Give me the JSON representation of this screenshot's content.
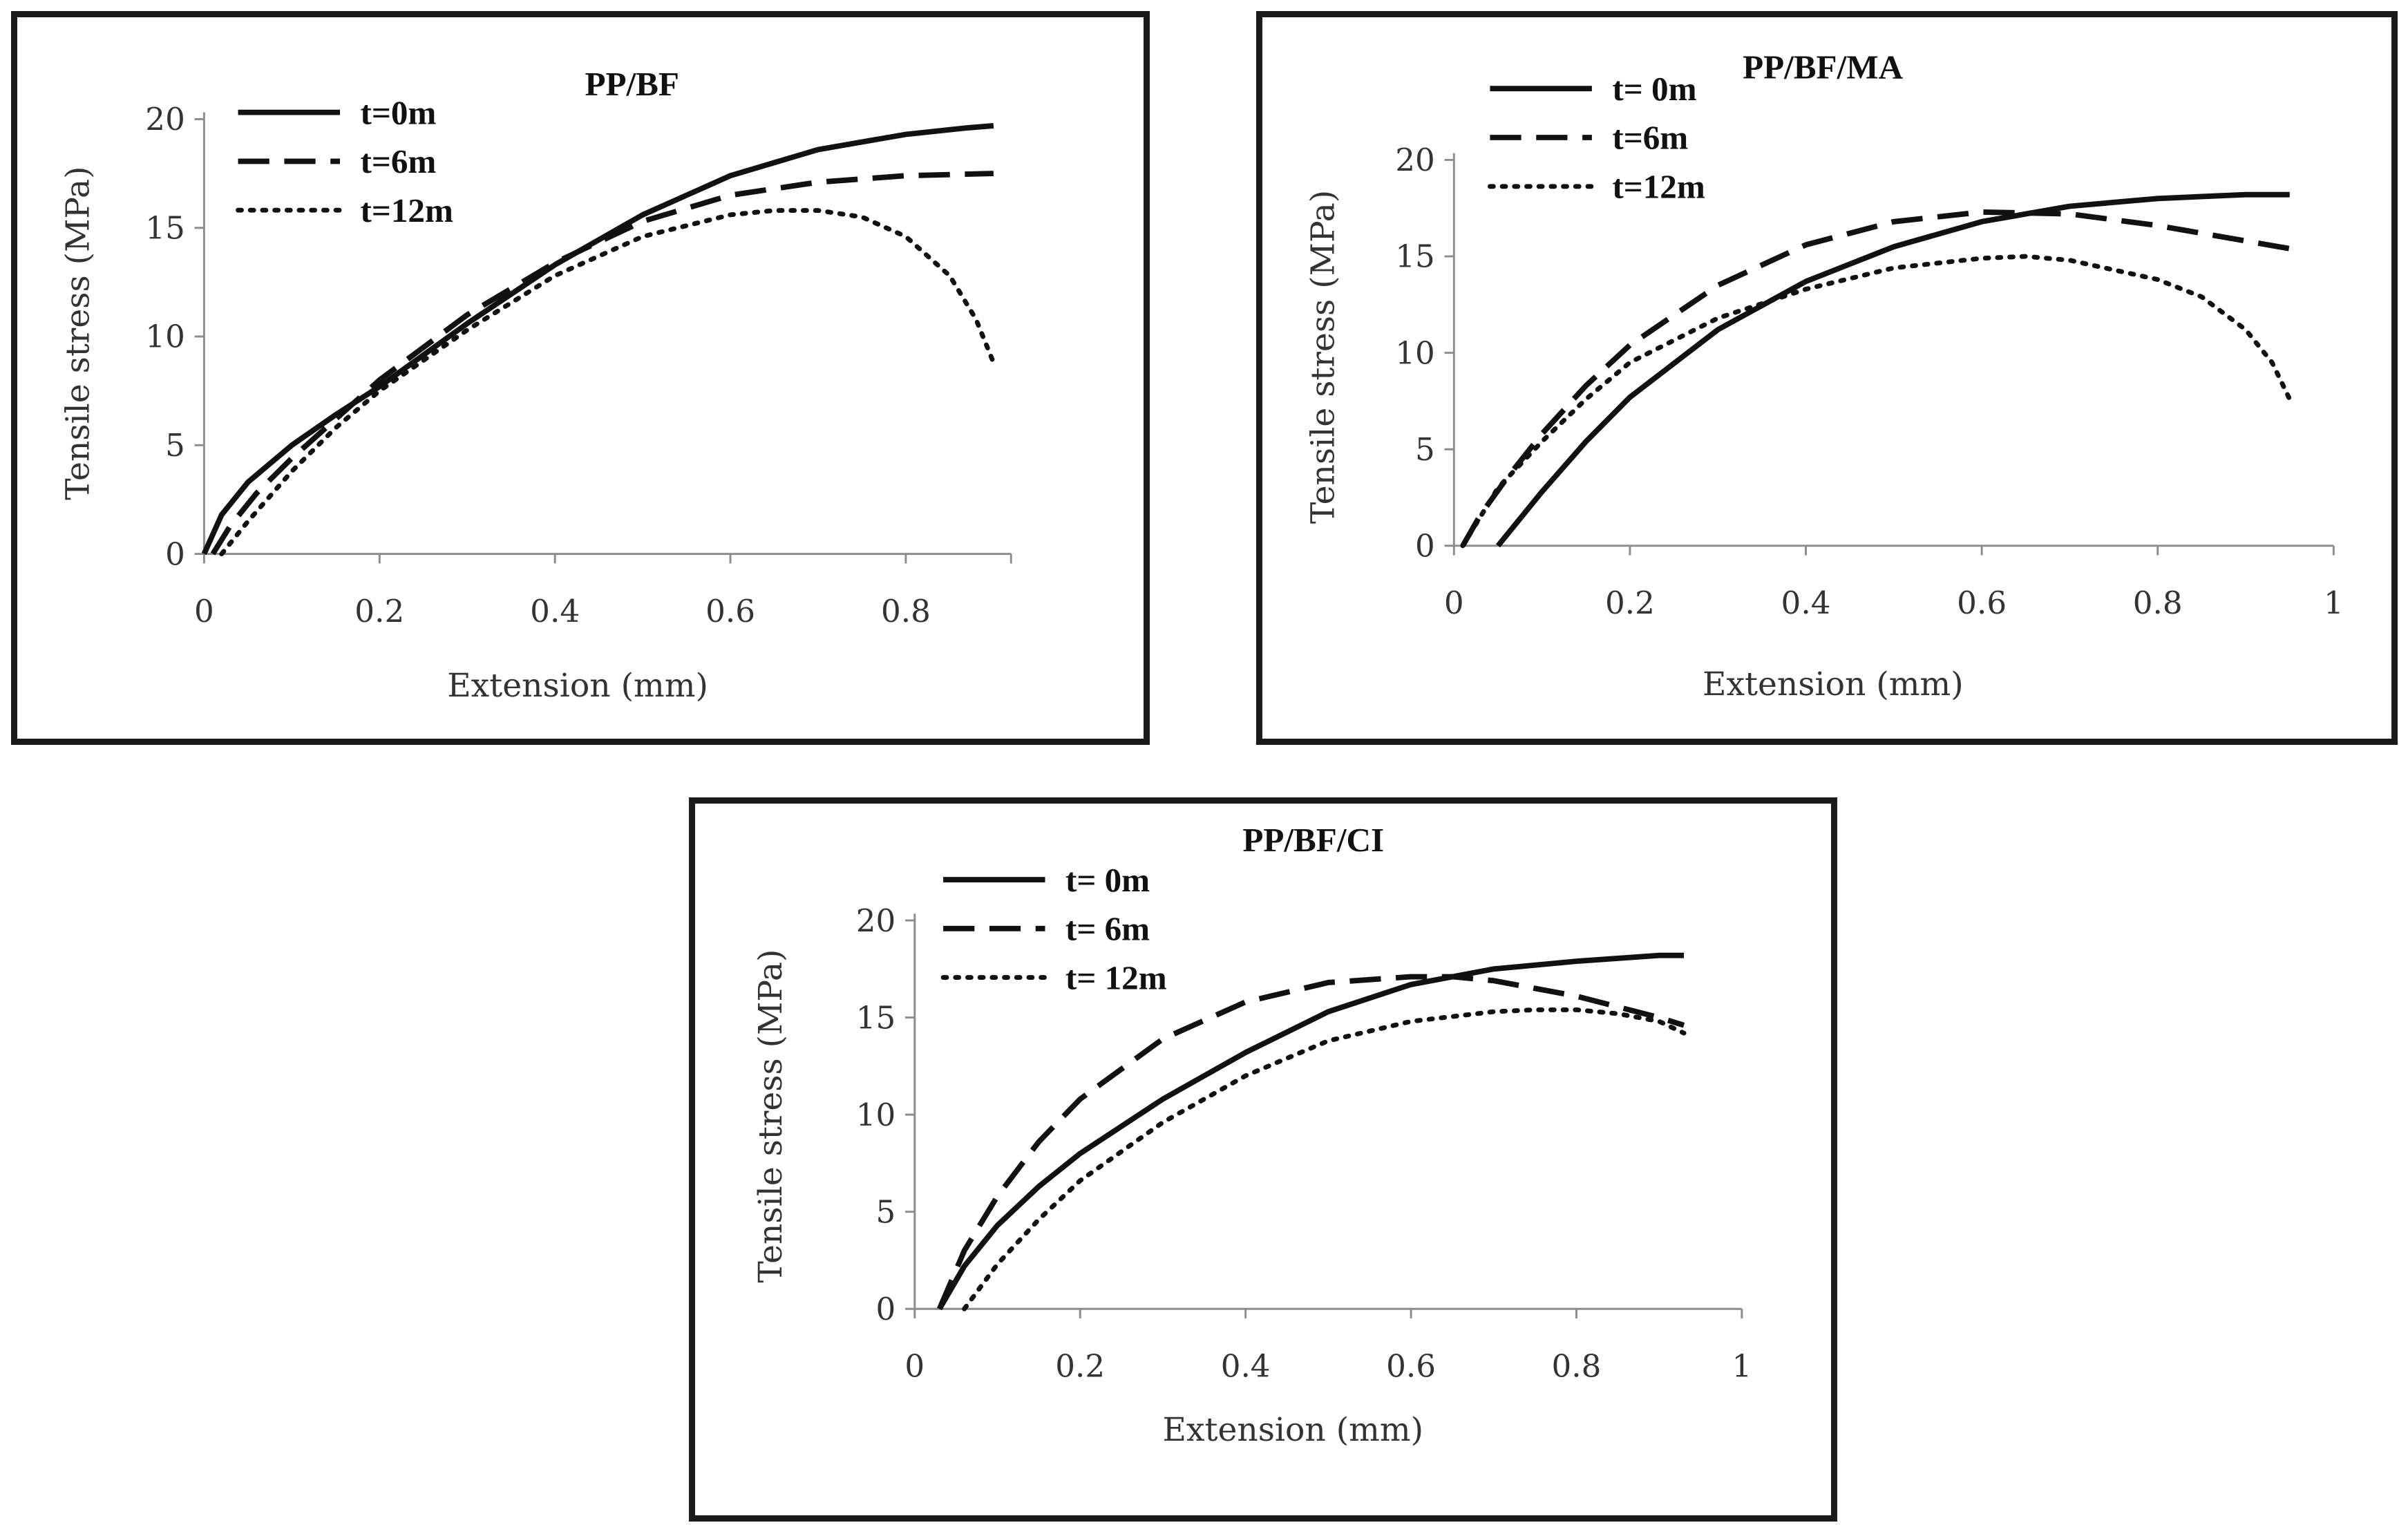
{
  "chart_data": [
    {
      "type": "line",
      "title": "PP/BF",
      "xlabel": "Extension (mm)",
      "ylabel": "Tensile stress (MPa)",
      "xlim": [
        0,
        0.92
      ],
      "ylim": [
        0,
        20
      ],
      "xticks": [
        "0",
        "0.2",
        "0.4",
        "0.6",
        "0.8"
      ],
      "xtick_values": [
        0,
        0.2,
        0.4,
        0.6,
        0.8
      ],
      "yticks": [
        "0",
        "5",
        "10",
        "15",
        "20"
      ],
      "ytick_values": [
        0,
        5,
        10,
        15,
        20
      ],
      "grid": false,
      "legend": "top-left",
      "series": [
        {
          "name": "t=0m",
          "style": "solid",
          "x": [
            0,
            0.02,
            0.05,
            0.1,
            0.15,
            0.2,
            0.3,
            0.4,
            0.5,
            0.6,
            0.7,
            0.8,
            0.87,
            0.9
          ],
          "y": [
            0,
            1.8,
            3.3,
            5.0,
            6.4,
            7.7,
            10.6,
            13.3,
            15.6,
            17.4,
            18.6,
            19.3,
            19.6,
            19.7
          ]
        },
        {
          "name": "t=6m",
          "style": "dashed",
          "x": [
            0.01,
            0.03,
            0.06,
            0.1,
            0.15,
            0.2,
            0.3,
            0.4,
            0.5,
            0.6,
            0.7,
            0.8,
            0.9
          ],
          "y": [
            0,
            1.3,
            2.8,
            4.4,
            6.2,
            8.0,
            11.0,
            13.4,
            15.3,
            16.5,
            17.1,
            17.4,
            17.5
          ]
        },
        {
          "name": "t=12m",
          "style": "dotted",
          "x": [
            0.02,
            0.05,
            0.1,
            0.15,
            0.2,
            0.3,
            0.4,
            0.5,
            0.6,
            0.65,
            0.7,
            0.75,
            0.8,
            0.85,
            0.88,
            0.9
          ],
          "y": [
            0,
            1.5,
            3.8,
            5.8,
            7.5,
            10.3,
            12.8,
            14.6,
            15.6,
            15.8,
            15.8,
            15.5,
            14.6,
            12.8,
            10.8,
            8.8
          ]
        }
      ]
    },
    {
      "type": "line",
      "title": "PP/BF/MA",
      "xlabel": "Extension (mm)",
      "ylabel": "Tensile stress (MPa)",
      "xlim": [
        0,
        1
      ],
      "ylim": [
        0,
        20
      ],
      "xticks": [
        "0",
        "0.2",
        "0.4",
        "0.6",
        "0.8",
        "1"
      ],
      "xtick_values": [
        0,
        0.2,
        0.4,
        0.6,
        0.8,
        1
      ],
      "yticks": [
        "0",
        "5",
        "10",
        "15",
        "20"
      ],
      "ytick_values": [
        0,
        5,
        10,
        15,
        20
      ],
      "grid": false,
      "legend": "top-left",
      "series": [
        {
          "name": "t= 0m",
          "style": "solid",
          "x": [
            0.05,
            0.1,
            0.15,
            0.2,
            0.3,
            0.4,
            0.5,
            0.6,
            0.7,
            0.8,
            0.9,
            0.95
          ],
          "y": [
            0,
            2.8,
            5.4,
            7.7,
            11.2,
            13.7,
            15.5,
            16.8,
            17.6,
            18.0,
            18.2,
            18.2
          ]
        },
        {
          "name": "t=6m",
          "style": "dashed",
          "x": [
            0.01,
            0.03,
            0.06,
            0.1,
            0.15,
            0.2,
            0.3,
            0.4,
            0.5,
            0.6,
            0.7,
            0.8,
            0.9,
            0.95
          ],
          "y": [
            0,
            1.6,
            3.5,
            5.8,
            8.3,
            10.4,
            13.5,
            15.6,
            16.8,
            17.3,
            17.2,
            16.6,
            15.8,
            15.4
          ]
        },
        {
          "name": "t=12m",
          "style": "dotted",
          "x": [
            0.01,
            0.05,
            0.1,
            0.15,
            0.2,
            0.3,
            0.4,
            0.5,
            0.6,
            0.65,
            0.7,
            0.8,
            0.85,
            0.9,
            0.93,
            0.95
          ],
          "y": [
            0,
            3.0,
            5.4,
            7.6,
            9.5,
            11.8,
            13.3,
            14.4,
            14.9,
            15.0,
            14.8,
            13.8,
            12.9,
            11.2,
            9.5,
            7.6
          ]
        }
      ]
    },
    {
      "type": "line",
      "title": "PP/BF/CI",
      "xlabel": "Extension (mm)",
      "ylabel": "Tensile stress (MPa)",
      "xlim": [
        0,
        1
      ],
      "ylim": [
        0,
        20
      ],
      "xticks": [
        "0",
        "0.2",
        "0.4",
        "0.6",
        "0.8",
        "1"
      ],
      "xtick_values": [
        0,
        0.2,
        0.4,
        0.6,
        0.8,
        1
      ],
      "yticks": [
        "0",
        "5",
        "10",
        "15",
        "20"
      ],
      "ytick_values": [
        0,
        5,
        10,
        15,
        20
      ],
      "grid": false,
      "legend": "top-left",
      "series": [
        {
          "name": "t= 0m",
          "style": "solid",
          "x": [
            0.03,
            0.06,
            0.1,
            0.15,
            0.2,
            0.3,
            0.4,
            0.5,
            0.6,
            0.7,
            0.8,
            0.9,
            0.93
          ],
          "y": [
            0,
            2.2,
            4.3,
            6.3,
            8.0,
            10.8,
            13.2,
            15.3,
            16.7,
            17.5,
            17.9,
            18.2,
            18.2
          ]
        },
        {
          "name": "t= 6m",
          "style": "dashed",
          "x": [
            0.03,
            0.06,
            0.1,
            0.15,
            0.2,
            0.3,
            0.4,
            0.5,
            0.6,
            0.65,
            0.7,
            0.8,
            0.9,
            0.93
          ],
          "y": [
            0,
            3.0,
            5.8,
            8.6,
            10.8,
            13.9,
            15.8,
            16.8,
            17.1,
            17.1,
            16.9,
            16.1,
            15.0,
            14.6
          ]
        },
        {
          "name": "t= 12m",
          "style": "dotted",
          "x": [
            0.06,
            0.1,
            0.15,
            0.2,
            0.3,
            0.4,
            0.5,
            0.6,
            0.7,
            0.75,
            0.8,
            0.85,
            0.9,
            0.93
          ],
          "y": [
            0,
            2.3,
            4.6,
            6.6,
            9.6,
            12.0,
            13.8,
            14.8,
            15.3,
            15.4,
            15.4,
            15.2,
            14.8,
            14.2
          ]
        }
      ]
    }
  ]
}
